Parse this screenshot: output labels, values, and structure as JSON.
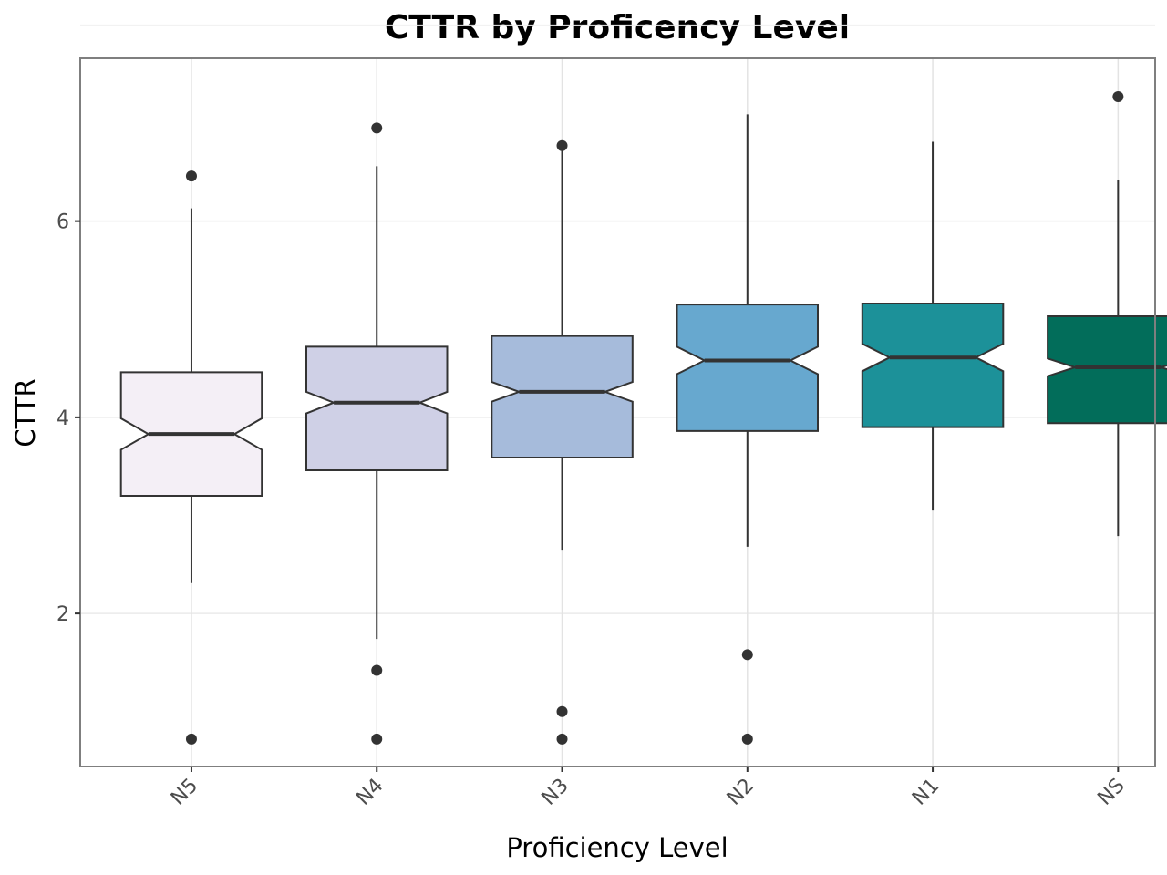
{
  "chart_data": {
    "type": "boxplot",
    "title": "CTTR by Proficency Level",
    "xlabel": "Proficiency Level",
    "ylabel": "CTTR",
    "ylim": [
      0.44,
      7.66
    ],
    "yticks": [
      2,
      4,
      6
    ],
    "grid": true,
    "legend": "none",
    "notched": true,
    "categories": [
      "N5",
      "N4",
      "N3",
      "N2",
      "N1",
      "NS"
    ],
    "boxes": [
      {
        "category": "N5",
        "whisker_low": 2.31,
        "q1": 3.2,
        "median": 3.83,
        "q3": 4.46,
        "whisker_high": 6.13,
        "notch_low": 3.67,
        "notch_high": 3.99,
        "outliers": [
          6.46,
          0.72
        ],
        "fill": "#f4eff6"
      },
      {
        "category": "N4",
        "whisker_low": 1.74,
        "q1": 3.46,
        "median": 4.15,
        "q3": 4.72,
        "whisker_high": 6.56,
        "notch_low": 4.04,
        "notch_high": 4.26,
        "outliers": [
          6.95,
          1.42,
          0.72
        ],
        "fill": "#cfd0e6"
      },
      {
        "category": "N3",
        "whisker_low": 2.65,
        "q1": 3.59,
        "median": 4.26,
        "q3": 4.83,
        "whisker_high": 6.77,
        "notch_low": 4.16,
        "notch_high": 4.36,
        "outliers": [
          6.77,
          1.0,
          0.72
        ],
        "fill": "#a6bbdb"
      },
      {
        "category": "N2",
        "whisker_low": 2.68,
        "q1": 3.86,
        "median": 4.58,
        "q3": 5.15,
        "whisker_high": 7.09,
        "notch_low": 4.44,
        "notch_high": 4.72,
        "outliers": [
          1.58,
          0.72
        ],
        "fill": "#67a8cf"
      },
      {
        "category": "N1",
        "whisker_low": 3.05,
        "q1": 3.9,
        "median": 4.61,
        "q3": 5.16,
        "whisker_high": 6.81,
        "notch_low": 4.47,
        "notch_high": 4.75,
        "outliers": [],
        "fill": "#1c9199"
      },
      {
        "category": "NS",
        "whisker_low": 2.79,
        "q1": 3.94,
        "median": 4.51,
        "q3": 5.03,
        "whisker_high": 6.42,
        "notch_low": 4.42,
        "notch_high": 4.6,
        "outliers": [
          7.27
        ],
        "fill": "#026d5a"
      }
    ]
  }
}
